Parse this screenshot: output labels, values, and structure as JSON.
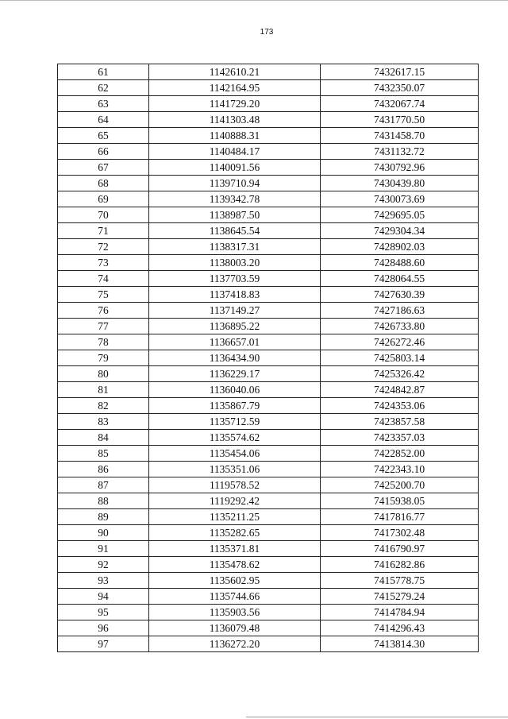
{
  "page_number": "173",
  "table": {
    "rows": [
      [
        "61",
        "1142610.21",
        "7432617.15"
      ],
      [
        "62",
        "1142164.95",
        "7432350.07"
      ],
      [
        "63",
        "1141729.20",
        "7432067.74"
      ],
      [
        "64",
        "1141303.48",
        "7431770.50"
      ],
      [
        "65",
        "1140888.31",
        "7431458.70"
      ],
      [
        "66",
        "1140484.17",
        "7431132.72"
      ],
      [
        "67",
        "1140091.56",
        "7430792.96"
      ],
      [
        "68",
        "1139710.94",
        "7430439.80"
      ],
      [
        "69",
        "1139342.78",
        "7430073.69"
      ],
      [
        "70",
        "1138987.50",
        "7429695.05"
      ],
      [
        "71",
        "1138645.54",
        "7429304.34"
      ],
      [
        "72",
        "1138317.31",
        "7428902.03"
      ],
      [
        "73",
        "1138003.20",
        "7428488.60"
      ],
      [
        "74",
        "1137703.59",
        "7428064.55"
      ],
      [
        "75",
        "1137418.83",
        "7427630.39"
      ],
      [
        "76",
        "1137149.27",
        "7427186.63"
      ],
      [
        "77",
        "1136895.22",
        "7426733.80"
      ],
      [
        "78",
        "1136657.01",
        "7426272.46"
      ],
      [
        "79",
        "1136434.90",
        "7425803.14"
      ],
      [
        "80",
        "1136229.17",
        "7425326.42"
      ],
      [
        "81",
        "1136040.06",
        "7424842.87"
      ],
      [
        "82",
        "1135867.79",
        "7424353.06"
      ],
      [
        "83",
        "1135712.59",
        "7423857.58"
      ],
      [
        "84",
        "1135574.62",
        "7423357.03"
      ],
      [
        "85",
        "1135454.06",
        "7422852.00"
      ],
      [
        "86",
        "1135351.06",
        "7422343.10"
      ],
      [
        "87",
        "1119578.52",
        "7425200.70"
      ],
      [
        "88",
        "1119292.42",
        "7415938.05"
      ],
      [
        "89",
        "1135211.25",
        "7417816.77"
      ],
      [
        "90",
        "1135282.65",
        "7417302.48"
      ],
      [
        "91",
        "1135371.81",
        "7416790.97"
      ],
      [
        "92",
        "1135478.62",
        "7416282.86"
      ],
      [
        "93",
        "1135602.95",
        "7415778.75"
      ],
      [
        "94",
        "1135744.66",
        "7415279.24"
      ],
      [
        "95",
        "1135903.56",
        "7414784.94"
      ],
      [
        "96",
        "1136079.48",
        "7414296.43"
      ],
      [
        "97",
        "1136272.20",
        "7413814.30"
      ]
    ]
  }
}
